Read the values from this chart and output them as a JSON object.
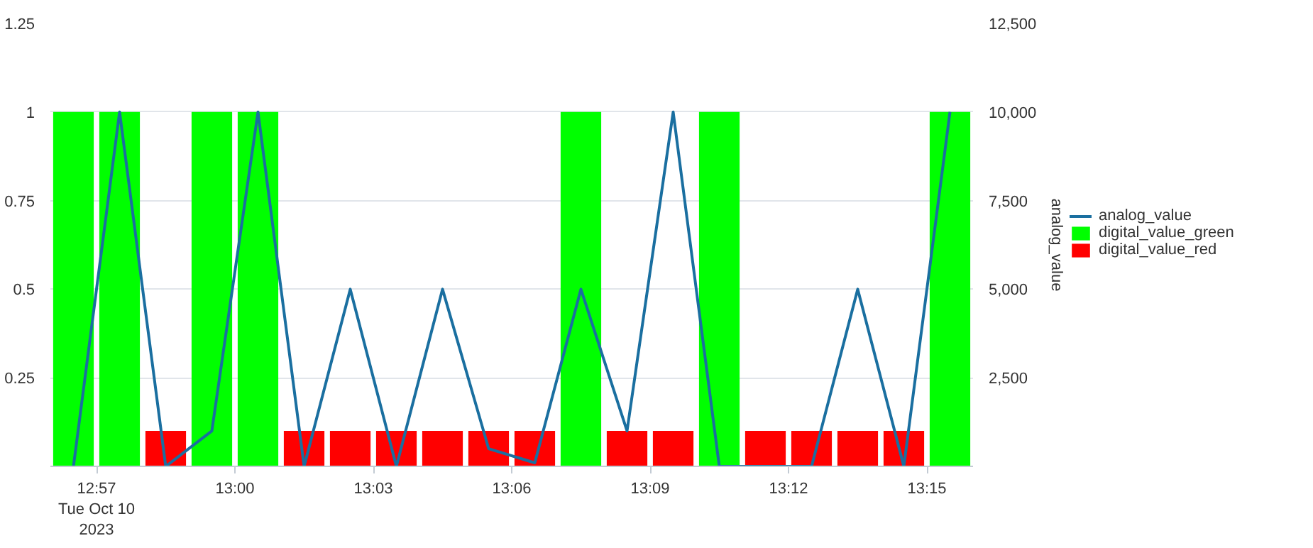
{
  "chart_data": {
    "type": "bar",
    "x": [
      "2023-10-10T12:56:30",
      "2023-10-10T12:57:30",
      "2023-10-10T12:58:30",
      "2023-10-10T12:59:30",
      "2023-10-10T13:00:30",
      "2023-10-10T13:01:30",
      "2023-10-10T13:02:30",
      "2023-10-10T13:03:30",
      "2023-10-10T13:04:30",
      "2023-10-10T13:05:30",
      "2023-10-10T13:06:30",
      "2023-10-10T13:07:30",
      "2023-10-10T13:08:30",
      "2023-10-10T13:09:30",
      "2023-10-10T13:10:30",
      "2023-10-10T13:11:30",
      "2023-10-10T13:12:30",
      "2023-10-10T13:13:30",
      "2023-10-10T13:14:30",
      "2023-10-10T13:15:30"
    ],
    "series": [
      {
        "name": "analog_value",
        "type": "line",
        "axis": "y2",
        "color": "#1a6fa0",
        "values": [
          0,
          10000,
          0,
          1000,
          10000,
          0,
          5000,
          0,
          5000,
          500,
          100,
          5000,
          1000,
          10000,
          0,
          0,
          0,
          5000,
          0,
          10000
        ]
      },
      {
        "name": "digital_value_green",
        "color": "#00ff00",
        "values": [
          1,
          1,
          null,
          1,
          1,
          null,
          null,
          null,
          null,
          null,
          null,
          1,
          null,
          null,
          1,
          null,
          null,
          null,
          null,
          1
        ]
      },
      {
        "name": "digital_value_red",
        "color": "#ff0000",
        "values": [
          null,
          null,
          0.1,
          null,
          null,
          0.1,
          0.1,
          0.1,
          0.1,
          0.1,
          0.1,
          null,
          0.1,
          0.1,
          null,
          0.1,
          0.1,
          0.1,
          0.1,
          null
        ]
      }
    ],
    "xlim": [
      "2023-10-10T12:56",
      "2023-10-10T13:16"
    ],
    "xticks": [
      {
        "value": "2023-10-10T12:57",
        "label": "12:57\nTue Oct 10\n2023"
      },
      {
        "value": "2023-10-10T13:00",
        "label": "13:00"
      },
      {
        "value": "2023-10-10T13:03",
        "label": "13:03"
      },
      {
        "value": "2023-10-10T13:06",
        "label": "13:06"
      },
      {
        "value": "2023-10-10T13:09",
        "label": "13:09"
      },
      {
        "value": "2023-10-10T13:12",
        "label": "13:12"
      },
      {
        "value": "2023-10-10T13:15",
        "label": "13:15"
      }
    ],
    "ylim": [
      0,
      1.25
    ],
    "yticks": [
      0.25,
      0.5,
      0.75,
      1,
      1.25
    ],
    "y2lim": [
      0,
      12500
    ],
    "y2ticks": [
      {
        "value": 2500,
        "label": "2,500"
      },
      {
        "value": 5000,
        "label": "5,000"
      },
      {
        "value": 7500,
        "label": "7,500"
      },
      {
        "value": 10000,
        "label": "10,000"
      },
      {
        "value": 12500,
        "label": "12,500"
      }
    ],
    "y2label": "analog_value",
    "grid": "y",
    "legend": "right"
  }
}
